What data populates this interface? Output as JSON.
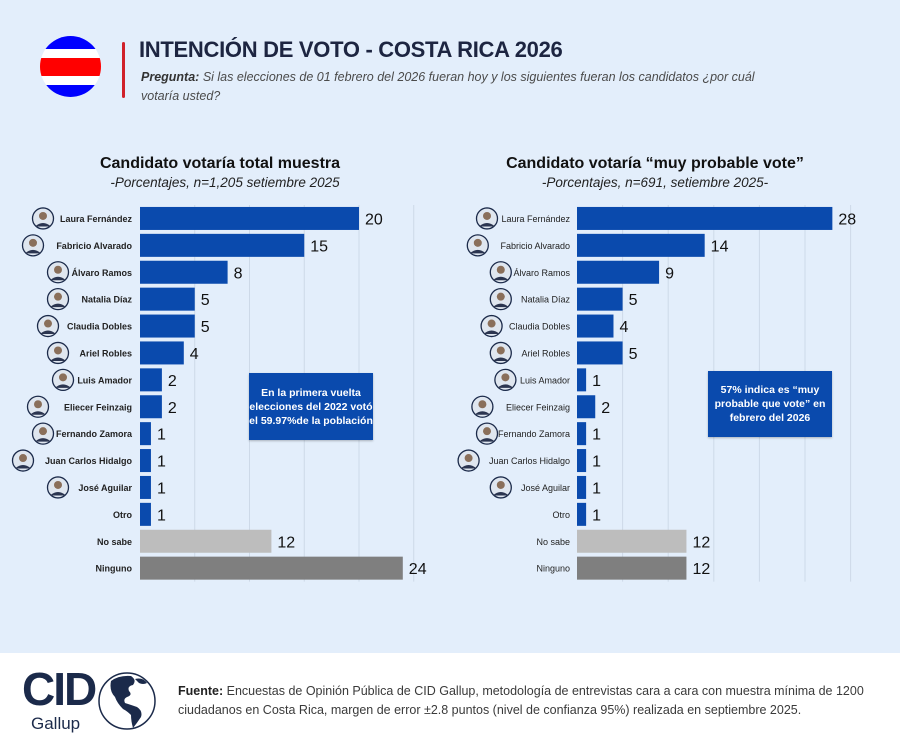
{
  "header": {
    "title": "INTENCIÓN DE VOTO - COSTA RICA 2026",
    "question_label": "Pregunta:",
    "question_text": " Si las elecciones de 01 febrero del 2026 fueran hoy y los siguientes fueran los candidatos ¿por cuál votaría usted?",
    "flag_colors": [
      "#0000ff",
      "#ffffff",
      "#ff0000",
      "#ffffff",
      "#0000ff"
    ]
  },
  "colors": {
    "candidate_bar": "#0a4aad",
    "no_sabe_bar": "#bdbdbd",
    "ninguno_bar": "#7f7f7f",
    "gridline": "#cdd9e8",
    "title_red_rule": "#d0202a"
  },
  "chart_data": [
    {
      "type": "bar",
      "orientation": "horizontal",
      "title": "Candidato votaría total muestra",
      "subtitle": "-Porcentajes, n=1,205 setiembre 2025",
      "xlabel": "",
      "ylabel": "",
      "xlim": [
        0,
        25
      ],
      "grid": true,
      "grid_step": 5,
      "categories": [
        "Laura Fernández",
        "Fabricio Alvarado",
        "Álvaro Ramos",
        "Natalia Díaz",
        "Claudia Dobles",
        "Ariel Robles",
        "Luis Amador",
        "Eliecer Feinzaig",
        "Fernando Zamora",
        "Juan Carlos Hidalgo",
        "José Aguilar",
        "Otro",
        "No sabe",
        "Ninguno"
      ],
      "values": [
        20,
        15,
        8,
        5,
        5,
        4,
        2,
        2,
        1,
        1,
        1,
        1,
        12,
        24
      ],
      "has_photo": [
        true,
        true,
        true,
        true,
        true,
        true,
        true,
        true,
        true,
        true,
        true,
        false,
        false,
        false
      ],
      "annotation": "En la primera vuelta elecciones del 2022 votó el 59.97%de la población"
    },
    {
      "type": "bar",
      "orientation": "horizontal",
      "title": "Candidato votaría “muy probable vote”",
      "subtitle": "-Porcentajes, n=691, setiembre 2025-",
      "xlabel": "",
      "ylabel": "",
      "xlim": [
        0,
        30
      ],
      "grid": true,
      "grid_step": 5,
      "categories": [
        "Laura Fernández",
        "Fabricio Alvarado",
        "Álvaro Ramos",
        "Natalia Díaz",
        "Claudia Dobles",
        "Ariel Robles",
        "Luis Amador",
        "Eliecer Feinzaig",
        "Fernando Zamora",
        "Juan Carlos Hidalgo",
        "José Aguilar",
        "Otro",
        "No sabe",
        "Ninguno"
      ],
      "values": [
        28,
        14,
        9,
        5,
        4,
        5,
        1,
        2,
        1,
        1,
        1,
        1,
        12,
        12
      ],
      "has_photo": [
        true,
        true,
        true,
        true,
        true,
        true,
        true,
        true,
        true,
        true,
        true,
        false,
        false,
        false
      ],
      "annotation": "57% indica es “muy probable que vote” en febrero del 2026"
    }
  ],
  "footer": {
    "logo_main": "CID",
    "logo_sub": "Gallup",
    "source_label": "Fuente:",
    "source_text": " Encuestas de Opinión Pública de CID Gallup, metodología de entrevistas cara a cara con muestra mínima de 1200 ciudadanos en Costa Rica, margen de error ±2.8 puntos (nivel de confianza 95%) realizada en septiembre 2025."
  }
}
